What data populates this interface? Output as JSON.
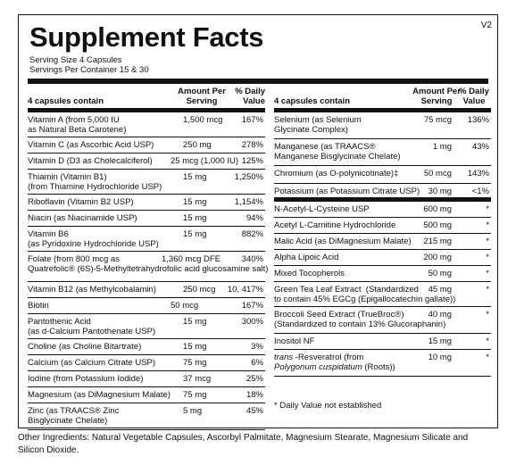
{
  "header": {
    "title": "Supplement Facts",
    "version": "V2",
    "serving_size": "Serving Size  4 Capsules",
    "servings_per_container": "Servings Per Container  15 & 30"
  },
  "left_table": {
    "columns": [
      "4 capsules contain",
      "Amount Per Serving",
      "% Daily Value"
    ],
    "col_amount_l1": "Amount Per",
    "col_amount_l2": "Serving",
    "col_dv_l1": "% Daily",
    "col_dv_l2": "Value",
    "rows": [
      {
        "name": "Vitamin A (from 5,000 IU\nas Natural Beta Carotene)",
        "amount": "1,500 mcg",
        "dv": "167%"
      },
      {
        "name": "Vitamin C (as Ascorbic Acid USP)",
        "amount": "250 mg",
        "dv": "278%"
      },
      {
        "name": "Vitamin D (D3 as Cholecalciferol)",
        "amount": "25 mcg (1,000 IU)",
        "dv": "125%"
      },
      {
        "name": "Thiamin (Vitamin B1)\n(from Thiamine Hydrochloride USP)",
        "amount": "15 mg",
        "dv": "1,250%"
      },
      {
        "name": "Riboflavin (Vitamin B2 USP)",
        "amount": "15 mg",
        "dv": "1,154%"
      },
      {
        "name": "Niacin (as Niacinamide USP)",
        "amount": "15 mg",
        "dv": "94%"
      },
      {
        "name": "Vitamin B6\n(as Pyridoxine Hydrochloride USP)",
        "amount": "15 mg",
        "dv": "882%"
      },
      {
        "name": "Folate (from 800 mcg as\nQuatrefolic® (6S)-5-Methyltetrahydrofolic acid glucosamine salt)",
        "amount": "1,360 mcg DFE",
        "dv": "340%"
      },
      {
        "name": "Vitamin B12 (as Methylcobalamin)",
        "amount": "250 mcg",
        "dv": "10, 417%"
      },
      {
        "name": "Biotin",
        "amount": "50 mcg",
        "dv": "167%"
      },
      {
        "name": "Pantothenic Acid\n(as d-Calcium Pantothenate USP)",
        "amount": "15 mg",
        "dv": "300%"
      },
      {
        "name": "Choline (as Choline Bitartrate)",
        "amount": "15 mg",
        "dv": "3%"
      },
      {
        "name": "Calcium (as Calcium Citrate USP)",
        "amount": "75 mg",
        "dv": "6%"
      },
      {
        "name": "Iodine (from Potassium Iodide)",
        "amount": "37 mcg",
        "dv": "25%"
      },
      {
        "name": "Magnesium (as DiMagnesium Malate)",
        "amount": "75 mg",
        "dv": "18%"
      },
      {
        "name": "Zinc (as TRAACS® Zinc\nBisglycinate Chelate)",
        "amount": "5 mg",
        "dv": "45%"
      }
    ]
  },
  "right_table": {
    "columns": [
      "4 capsules contain",
      "Amount Per Serving",
      "% Daily Value"
    ],
    "col_amount_l1": "Amount Per",
    "col_amount_l2": "Serving",
    "col_dv_l1": "% Daily",
    "col_dv_l2": "Value",
    "rows": [
      {
        "name": "Selenium (as Selenium\nGlycinate Complex)",
        "amount": "75 mcg",
        "dv": "136%"
      },
      {
        "name": "Manganese (as TRAACS®\nManganese Bisglycinate Chelate)",
        "amount": "1 mg",
        "dv": "43%"
      },
      {
        "name": "Chromium (as O-polynicotinate)‡",
        "amount": "50 mcg",
        "dv": "143%"
      },
      {
        "name": "Potassium (as Potassium Citrate USP)",
        "amount": "30 mg",
        "dv": "<1%"
      },
      {
        "name": "N-Acetyl-L-Cysteine USP",
        "amount": "600 mg",
        "dv": "*"
      },
      {
        "name": "Acetyl L-Carnitine Hydrochloride",
        "amount": "500 mg",
        "dv": "*"
      },
      {
        "name": "Malic Acid (as DiMagnesium Malate)",
        "amount": "215 mg",
        "dv": "*"
      },
      {
        "name": "Alpha Lipoic Acid",
        "amount": "200 mg",
        "dv": "*"
      },
      {
        "name": "Mixed Tocopherols",
        "amount": "50 mg",
        "dv": "*"
      },
      {
        "name": "Green Tea Leaf Extract  (Standardized\nto contain 45% EGCg (Epigallocatechin gallate))",
        "amount": "45 mg",
        "dv": "*"
      },
      {
        "name": "Broccoli Seed Extract (TrueBroc®)\n(Standardized to contain 13% Glucoraphanin)",
        "amount": "40 mg",
        "dv": "*"
      },
      {
        "name": "Inositol NF",
        "amount": "15 mg",
        "dv": "*"
      },
      {
        "name": "trans -Resveratrol (from\nPolygonum cuspidatum (Roots))",
        "amount": "10 mg",
        "dv": "*"
      }
    ],
    "footnote": "*  Daily Value not established"
  },
  "other_ingredients": "Other Ingredients: Natural Vegetable Capsules, Ascorbyl Palmitate, Magnesium Stearate, Magnesium Silicate and Silicon Dioxide."
}
